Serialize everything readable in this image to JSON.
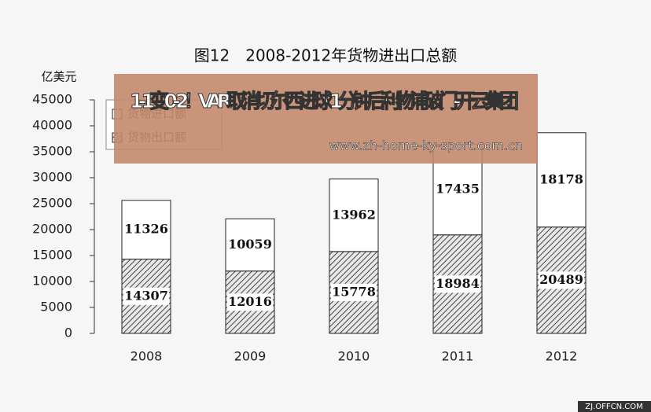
{
  "chart_data": {
    "type": "stacked_bar",
    "title": "图12　2008-2012年货物进出口总额",
    "y_label": "亿美元",
    "categories": [
      "2008",
      "2009",
      "2010",
      "2011",
      "2012"
    ],
    "series": [
      {
        "name": "货物出口额",
        "color": "#555555",
        "values": [
          14307,
          12016,
          15778,
          18984,
          20489
        ]
      },
      {
        "name": "货物进口额",
        "color": "#ffffff",
        "values": [
          11326,
          10059,
          13962,
          17435,
          18178
        ]
      }
    ],
    "ylim": [
      0,
      45000
    ],
    "yticks": [
      0,
      5000,
      10000,
      15000,
      20000,
      25000,
      30000,
      35000,
      40000,
      45000
    ]
  },
  "overlay": {
    "headline": "1-1变0-2！VAR取消切尔西进球 1分钟后利物浦破门-开云集团",
    "url": "www.zh-home-ky-sport.com.cn",
    "watermark": "ZJ.OFFCN.COM"
  }
}
